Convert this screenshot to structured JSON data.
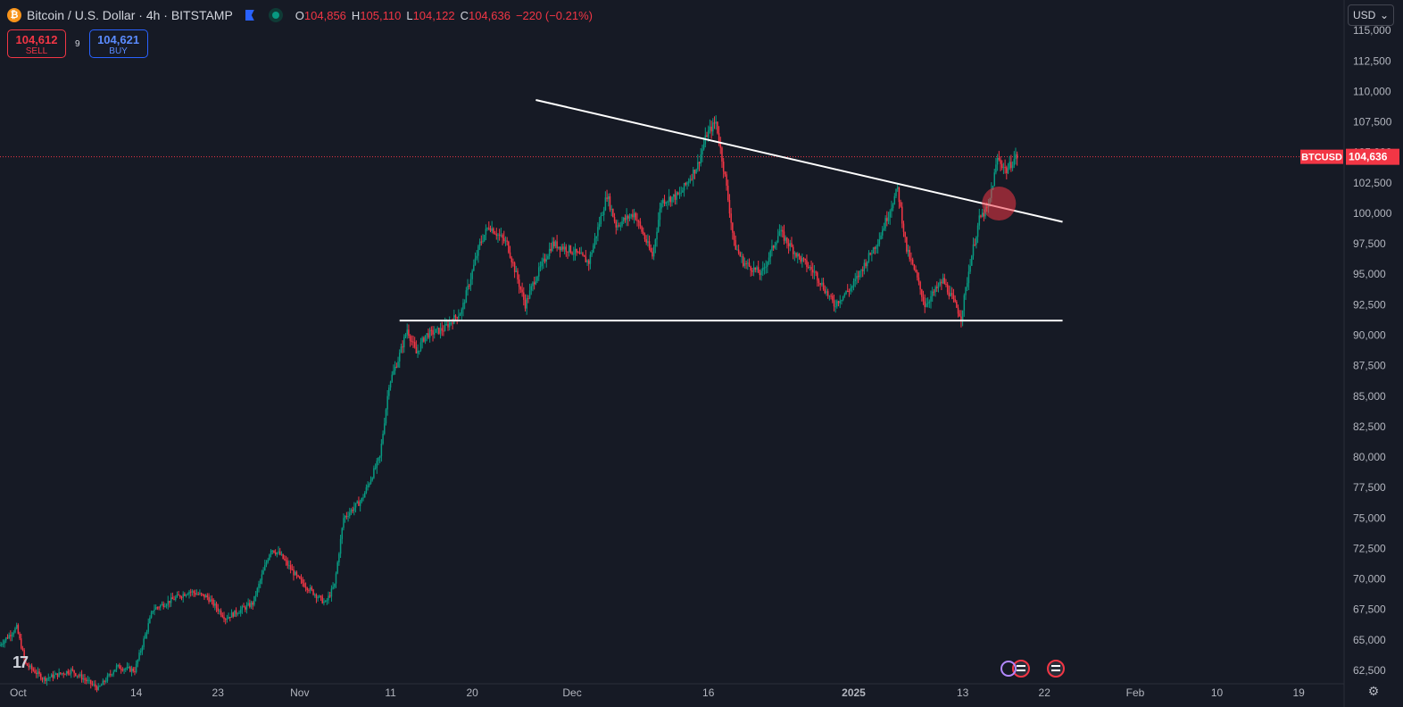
{
  "header": {
    "symbol_title": "Bitcoin / U.S. Dollar · 4h · BITSTAMP",
    "open_label": "O",
    "open": "104,856",
    "high_label": "H",
    "high": "105,110",
    "low_label": "L",
    "low": "104,122",
    "close_label": "C",
    "close": "104,636",
    "change": "−220 (−0.21%)"
  },
  "trade": {
    "sell_price": "104,612",
    "sell_label": "SELL",
    "spread": "9",
    "buy_price": "104,621",
    "buy_label": "BUY"
  },
  "currency": "USD",
  "price_tag": {
    "ticker": "BTCUSD",
    "price": "104,636"
  },
  "icons": {
    "logo": "bitcoin-icon",
    "flag": "flag-icon",
    "status": "market-open-dot-icon",
    "settings": "gear-icon",
    "tv": "tradingview-logo-icon",
    "events": "us-flag-event-icon"
  },
  "colors": {
    "up": "#089981",
    "down": "#f23645",
    "background": "#161a25",
    "line": "#ffffff",
    "highlight": "#f23645",
    "buy": "#2962ff"
  },
  "chart_data": {
    "type": "candlestick",
    "title": "Bitcoin / U.S. Dollar · 4h · BITSTAMP",
    "y_ticks": [
      62500,
      65000,
      67500,
      70000,
      72500,
      75000,
      77500,
      80000,
      82500,
      85000,
      87500,
      90000,
      92500,
      95000,
      97500,
      100000,
      102500,
      105000,
      107500,
      110000,
      112500,
      115000
    ],
    "y_tick_labels": [
      "62,500",
      "65,000",
      "67,500",
      "70,000",
      "72,500",
      "75,000",
      "77,500",
      "80,000",
      "82,500",
      "85,000",
      "87,500",
      "90,000",
      "92,500",
      "95,000",
      "97,500",
      "100,000",
      "102,500",
      "105,000",
      "107,500",
      "110,000",
      "112,500",
      "115,000"
    ],
    "ylim": [
      61400,
      117500
    ],
    "x_range": [
      "2024-09-29",
      "2025-02-24"
    ],
    "x_ticks": [
      {
        "label": "Oct",
        "date": "2024-10-01"
      },
      {
        "label": "14",
        "date": "2024-10-14"
      },
      {
        "label": "23",
        "date": "2024-10-23"
      },
      {
        "label": "Nov",
        "date": "2024-11-01"
      },
      {
        "label": "11",
        "date": "2024-11-11"
      },
      {
        "label": "20",
        "date": "2024-11-20"
      },
      {
        "label": "Dec",
        "date": "2024-12-01"
      },
      {
        "label": "16",
        "date": "2024-12-16"
      },
      {
        "label": "2025",
        "date": "2025-01-01"
      },
      {
        "label": "13",
        "date": "2025-01-13"
      },
      {
        "label": "22",
        "date": "2025-01-22"
      },
      {
        "label": "Feb",
        "date": "2025-02-01"
      },
      {
        "label": "10",
        "date": "2025-02-10"
      },
      {
        "label": "19",
        "date": "2025-02-19"
      }
    ],
    "last_price": 104636,
    "price_path": [
      {
        "date": "2024-09-29",
        "price": 64500
      },
      {
        "date": "2024-10-01",
        "price": 66000
      },
      {
        "date": "2024-10-02",
        "price": 63000
      },
      {
        "date": "2024-10-04",
        "price": 61800
      },
      {
        "date": "2024-10-07",
        "price": 62500
      },
      {
        "date": "2024-10-10",
        "price": 61000
      },
      {
        "date": "2024-10-12",
        "price": 62800
      },
      {
        "date": "2024-10-14",
        "price": 62500
      },
      {
        "date": "2024-10-16",
        "price": 67500
      },
      {
        "date": "2024-10-20",
        "price": 69000
      },
      {
        "date": "2024-10-22",
        "price": 68500
      },
      {
        "date": "2024-10-24",
        "price": 66800
      },
      {
        "date": "2024-10-27",
        "price": 68000
      },
      {
        "date": "2024-10-29",
        "price": 72500
      },
      {
        "date": "2024-10-30",
        "price": 72000
      },
      {
        "date": "2024-11-01",
        "price": 70000
      },
      {
        "date": "2024-11-04",
        "price": 68000
      },
      {
        "date": "2024-11-05",
        "price": 69500
      },
      {
        "date": "2024-11-06",
        "price": 75000
      },
      {
        "date": "2024-11-08",
        "price": 76500
      },
      {
        "date": "2024-11-10",
        "price": 80000
      },
      {
        "date": "2024-11-11",
        "price": 86000
      },
      {
        "date": "2024-11-12",
        "price": 88000
      },
      {
        "date": "2024-11-13",
        "price": 90500
      },
      {
        "date": "2024-11-14",
        "price": 88500
      },
      {
        "date": "2024-11-15",
        "price": 90000
      },
      {
        "date": "2024-11-17",
        "price": 90500
      },
      {
        "date": "2024-11-19",
        "price": 92000
      },
      {
        "date": "2024-11-21",
        "price": 97500
      },
      {
        "date": "2024-11-22",
        "price": 99000
      },
      {
        "date": "2024-11-24",
        "price": 97500
      },
      {
        "date": "2024-11-26",
        "price": 92500
      },
      {
        "date": "2024-11-27",
        "price": 94500
      },
      {
        "date": "2024-11-29",
        "price": 97500
      },
      {
        "date": "2024-12-01",
        "price": 97000
      },
      {
        "date": "2024-12-03",
        "price": 96000
      },
      {
        "date": "2024-12-05",
        "price": 101500
      },
      {
        "date": "2024-12-06",
        "price": 99000
      },
      {
        "date": "2024-12-08",
        "price": 100000
      },
      {
        "date": "2024-12-10",
        "price": 96500
      },
      {
        "date": "2024-12-11",
        "price": 101000
      },
      {
        "date": "2024-12-13",
        "price": 101500
      },
      {
        "date": "2024-12-15",
        "price": 104000
      },
      {
        "date": "2024-12-16",
        "price": 106500
      },
      {
        "date": "2024-12-17",
        "price": 107500
      },
      {
        "date": "2024-12-18",
        "price": 103000
      },
      {
        "date": "2024-12-19",
        "price": 97500
      },
      {
        "date": "2024-12-20",
        "price": 96000
      },
      {
        "date": "2024-12-22",
        "price": 95000
      },
      {
        "date": "2024-12-24",
        "price": 98500
      },
      {
        "date": "2024-12-26",
        "price": 96500
      },
      {
        "date": "2024-12-28",
        "price": 95000
      },
      {
        "date": "2024-12-30",
        "price": 92500
      },
      {
        "date": "2025-01-01",
        "price": 94000
      },
      {
        "date": "2025-01-04",
        "price": 98000
      },
      {
        "date": "2025-01-06",
        "price": 102000
      },
      {
        "date": "2025-01-07",
        "price": 97000
      },
      {
        "date": "2025-01-08",
        "price": 95000
      },
      {
        "date": "2025-01-09",
        "price": 92500
      },
      {
        "date": "2025-01-11",
        "price": 94500
      },
      {
        "date": "2025-01-13",
        "price": 91500
      },
      {
        "date": "2025-01-14",
        "price": 96000
      },
      {
        "date": "2025-01-15",
        "price": 99500
      },
      {
        "date": "2025-01-16",
        "price": 100500
      },
      {
        "date": "2025-01-17",
        "price": 104500
      },
      {
        "date": "2025-01-18",
        "price": 103500
      },
      {
        "date": "2025-01-19",
        "price": 104636
      }
    ],
    "trendlines": [
      {
        "name": "descending resistance",
        "start": {
          "date": "2024-11-27",
          "price": 109300
        },
        "end": {
          "date": "2025-01-24",
          "price": 99300
        }
      },
      {
        "name": "support",
        "start": {
          "date": "2024-11-12",
          "price": 91200
        },
        "end": {
          "date": "2025-01-24",
          "price": 91200
        }
      }
    ],
    "breakout_marker": {
      "date": "2025-01-17",
      "price": 100800
    }
  }
}
